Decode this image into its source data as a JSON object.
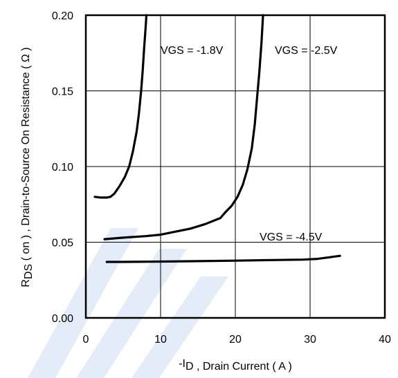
{
  "chart_data": {
    "type": "line",
    "title": "",
    "xlabel": {
      "prefix": "-I",
      "sub": "D",
      "suffix": " , Drain Current ( A )"
    },
    "ylabel": {
      "prefix": "R",
      "sub": "DS",
      "suffix": " ( on ) , Drain-to-Source On Resistance ( Ω )"
    },
    "xlim": [
      0,
      40
    ],
    "ylim": [
      0,
      0.2
    ],
    "xticks": [
      "0",
      "10",
      "20",
      "30",
      "40"
    ],
    "yticks": [
      "0.00",
      "0.05",
      "0.10",
      "0.15",
      "0.20"
    ],
    "grid": true,
    "series": [
      {
        "name": "VGS = -1.8V",
        "x": [
          1.2,
          2.0,
          2.8,
          3.3,
          3.8,
          4.5,
          5.2,
          5.8,
          6.3,
          6.8,
          7.1,
          7.4,
          7.6,
          7.8,
          8.0,
          8.1
        ],
        "y": [
          0.08,
          0.0795,
          0.0795,
          0.08,
          0.082,
          0.087,
          0.093,
          0.1,
          0.11,
          0.123,
          0.135,
          0.15,
          0.163,
          0.178,
          0.192,
          0.2
        ]
      },
      {
        "name": "VGS = -2.5V",
        "x": [
          2.5,
          5,
          8,
          10,
          12,
          14,
          16,
          18,
          18.7,
          19.5,
          20.3,
          21,
          21.6,
          22.2,
          22.6,
          22.9,
          23.2,
          23.5,
          23.7
        ],
        "y": [
          0.052,
          0.053,
          0.054,
          0.055,
          0.057,
          0.059,
          0.062,
          0.066,
          0.07,
          0.074,
          0.08,
          0.088,
          0.098,
          0.112,
          0.128,
          0.145,
          0.162,
          0.182,
          0.2
        ]
      },
      {
        "name": "VGS = -4.5V",
        "x": [
          2.8,
          5,
          10,
          15,
          20,
          25,
          29,
          31,
          32.5,
          34
        ],
        "y": [
          0.037,
          0.037,
          0.0372,
          0.0375,
          0.0378,
          0.0382,
          0.0385,
          0.039,
          0.04,
          0.041
        ]
      }
    ]
  }
}
